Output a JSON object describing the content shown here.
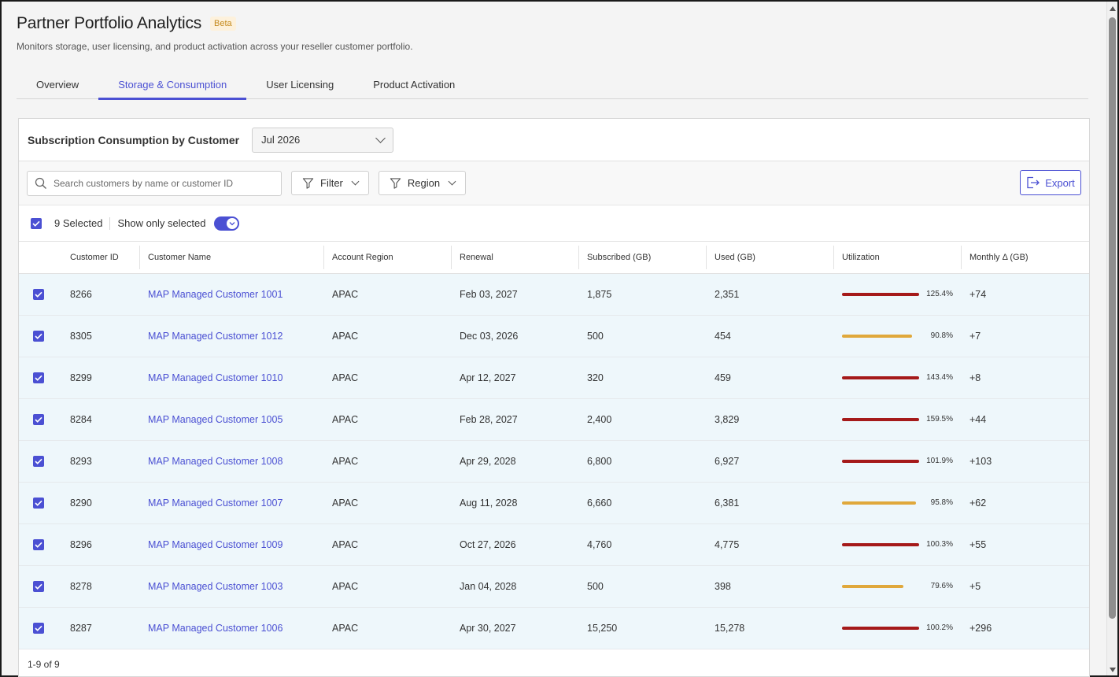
{
  "header": {
    "title": "Partner Portfolio Analytics",
    "badge": "Beta",
    "subtitle": "Monitors storage, user licensing, and product activation across your reseller customer portfolio."
  },
  "tabs": [
    {
      "label": "Overview",
      "active": false
    },
    {
      "label": "Storage & Consumption",
      "active": true
    },
    {
      "label": "User Licensing",
      "active": false
    },
    {
      "label": "Product Activation",
      "active": false
    }
  ],
  "card": {
    "title": "Subscription Consumption by Customer",
    "month": "Jul 2026"
  },
  "toolbar": {
    "search_placeholder": "Search customers by name or customer ID",
    "filter_label": "Filter",
    "region_label": "Region",
    "export_label": "Export"
  },
  "selection": {
    "count_label": "9 Selected",
    "show_only_label": "Show only selected",
    "show_only_enabled": true
  },
  "table": {
    "columns": [
      "Customer ID",
      "Customer Name",
      "Account Region",
      "Renewal",
      "Subscribed (GB)",
      "Used (GB)",
      "Utilization",
      "Monthly Δ (GB)"
    ],
    "rows": [
      {
        "id": "8266",
        "name": "MAP Managed Customer 1001",
        "region": "APAC",
        "renewal": "Feb 03, 2027",
        "subscribed": "1,875",
        "used": "2,351",
        "util": 125.4,
        "util_label": "125.4%",
        "delta": "+74",
        "checked": true
      },
      {
        "id": "8305",
        "name": "MAP Managed Customer 1012",
        "region": "APAC",
        "renewal": "Dec 03, 2026",
        "subscribed": "500",
        "used": "454",
        "util": 90.8,
        "util_label": "90.8%",
        "delta": "+7",
        "checked": true
      },
      {
        "id": "8299",
        "name": "MAP Managed Customer 1010",
        "region": "APAC",
        "renewal": "Apr 12, 2027",
        "subscribed": "320",
        "used": "459",
        "util": 143.4,
        "util_label": "143.4%",
        "delta": "+8",
        "checked": true
      },
      {
        "id": "8284",
        "name": "MAP Managed Customer 1005",
        "region": "APAC",
        "renewal": "Feb 28, 2027",
        "subscribed": "2,400",
        "used": "3,829",
        "util": 159.5,
        "util_label": "159.5%",
        "delta": "+44",
        "checked": true
      },
      {
        "id": "8293",
        "name": "MAP Managed Customer 1008",
        "region": "APAC",
        "renewal": "Apr 29, 2028",
        "subscribed": "6,800",
        "used": "6,927",
        "util": 101.9,
        "util_label": "101.9%",
        "delta": "+103",
        "checked": true
      },
      {
        "id": "8290",
        "name": "MAP Managed Customer 1007",
        "region": "APAC",
        "renewal": "Aug 11, 2028",
        "subscribed": "6,660",
        "used": "6,381",
        "util": 95.8,
        "util_label": "95.8%",
        "delta": "+62",
        "checked": true
      },
      {
        "id": "8296",
        "name": "MAP Managed Customer 1009",
        "region": "APAC",
        "renewal": "Oct 27, 2026",
        "subscribed": "4,760",
        "used": "4,775",
        "util": 100.3,
        "util_label": "100.3%",
        "delta": "+55",
        "checked": true
      },
      {
        "id": "8278",
        "name": "MAP Managed Customer 1003",
        "region": "APAC",
        "renewal": "Jan 04, 2028",
        "subscribed": "500",
        "used": "398",
        "util": 79.6,
        "util_label": "79.6%",
        "delta": "+5",
        "checked": true
      },
      {
        "id": "8287",
        "name": "MAP Managed Customer 1006",
        "region": "APAC",
        "renewal": "Apr 30, 2027",
        "subscribed": "15,250",
        "used": "15,278",
        "util": 100.2,
        "util_label": "100.2%",
        "delta": "+296",
        "checked": true
      }
    ]
  },
  "pagination": "1-9 of 9",
  "colors": {
    "accent": "#4b50d3",
    "over_limit": "#a51a1a",
    "under_limit": "#e0a83b",
    "row_bg": "#eef7fb"
  }
}
